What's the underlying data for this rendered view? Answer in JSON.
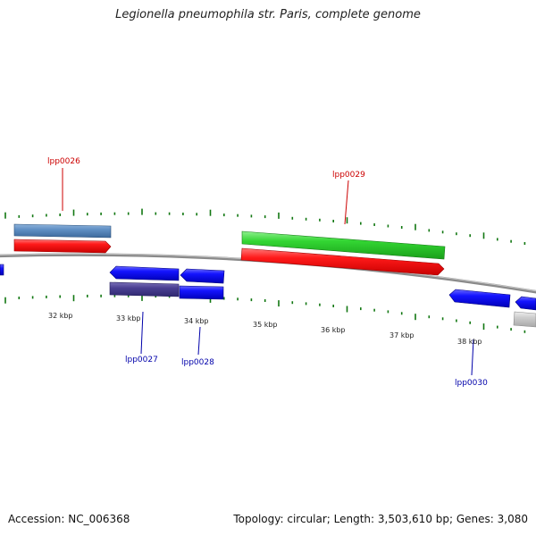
{
  "title": "Legionella pneumophila str. Paris, complete genome",
  "footer": {
    "accession": "Accession: NC_006368",
    "summary": "Topology: circular; Length: 3,503,610 bp; Genes: 3,080"
  },
  "colors": {
    "label_red": "#cc0000",
    "label_blue": "#0000aa",
    "tick_green": "#117711",
    "backbone": "#888888"
  },
  "scale_labels": [
    "32 kbp",
    "33 kbp",
    "34 kbp",
    "35 kbp",
    "36 kbp",
    "37 kbp",
    "38 kbp"
  ],
  "gene_labels": [
    {
      "id": "lpp0026",
      "text": "lpp0026",
      "color": "red"
    },
    {
      "id": "lpp0027",
      "text": "lpp0027",
      "color": "blue"
    },
    {
      "id": "lpp0028",
      "text": "lpp0028",
      "color": "blue"
    },
    {
      "id": "lpp0029",
      "text": "lpp0029",
      "color": "red"
    },
    {
      "id": "lpp0030",
      "text": "lpp0030",
      "color": "blue"
    }
  ]
}
